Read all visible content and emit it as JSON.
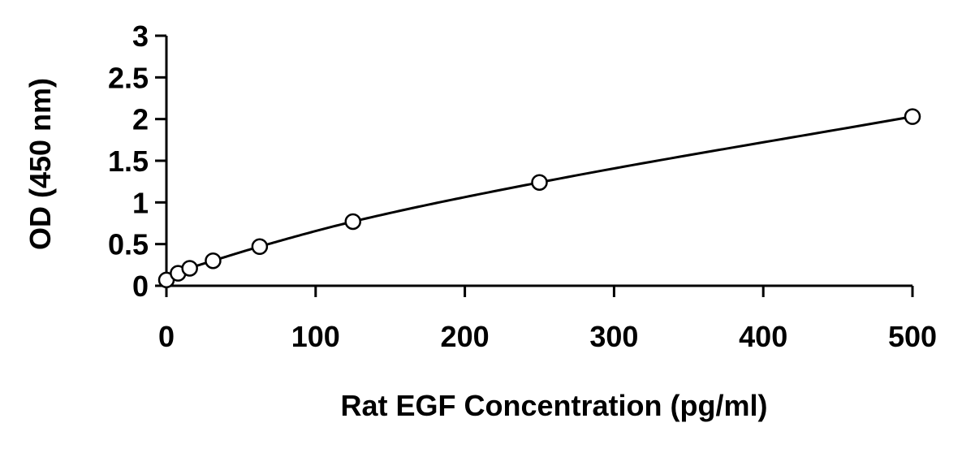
{
  "chart_data": {
    "type": "scatter",
    "title": "",
    "xlabel": "Rat EGF Concentration (pg/ml)",
    "ylabel": "OD (450 nm)",
    "xlim": [
      0,
      500
    ],
    "ylim": [
      0,
      3
    ],
    "x_ticks": [
      0,
      100,
      200,
      300,
      400,
      500
    ],
    "x_tick_labels": [
      "0",
      "100",
      "200",
      "300",
      "400",
      "500"
    ],
    "y_ticks": [
      0,
      0.5,
      1,
      1.5,
      2,
      2.5,
      3
    ],
    "y_tick_labels": [
      "0",
      "0.5",
      "1",
      "1.5",
      "2",
      "2.5",
      "3"
    ],
    "grid": false,
    "legend": "none",
    "marker": "open-circle",
    "series": [
      {
        "x": [
          0,
          7.8,
          15.6,
          31.25,
          62.5,
          125,
          250,
          500
        ],
        "y": [
          0.07,
          0.15,
          0.21,
          0.3,
          0.47,
          0.77,
          1.24,
          2.03
        ]
      }
    ],
    "fit_curve": {
      "type": "smooth",
      "x": [
        0,
        7.8,
        15.6,
        31.25,
        62.5,
        125,
        250,
        500
      ],
      "y": [
        0.07,
        0.15,
        0.21,
        0.3,
        0.47,
        0.77,
        1.24,
        2.03
      ]
    }
  }
}
